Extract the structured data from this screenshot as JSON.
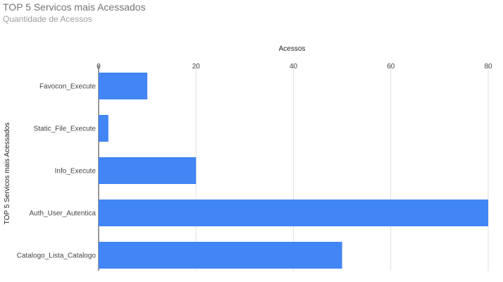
{
  "chart_data": {
    "type": "bar",
    "orientation": "horizontal",
    "title": "TOP 5 Servicos mais Acessados",
    "subtitle": "Quantidade de Acessos",
    "xlabel": "Acessos",
    "ylabel": "TOP 5 Servicos mais Acessados",
    "categories": [
      "Favocon_Execute",
      "Static_File_Execute",
      "Info_Execute",
      "Auth_User_Autentica",
      "Catalogo_Lista_Catalogo"
    ],
    "series": [
      {
        "values": [
          10,
          2,
          20,
          80,
          50
        ]
      }
    ],
    "xticks": [
      0,
      20,
      40,
      60,
      80
    ],
    "xlim": [
      0,
      80
    ],
    "x_axis_position": "top",
    "grid": true,
    "legend": "none",
    "bar_color": "#4285f4"
  }
}
